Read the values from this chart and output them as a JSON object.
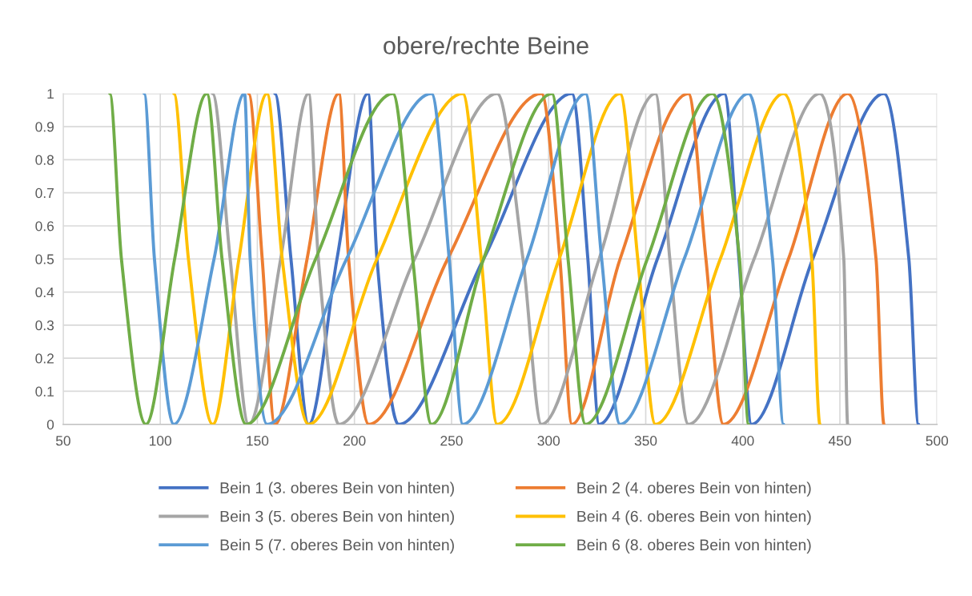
{
  "chart_data": {
    "type": "line",
    "title": "obere/rechte Beine",
    "xlim": [
      50,
      500
    ],
    "xticks": [
      50,
      100,
      150,
      200,
      250,
      300,
      350,
      400,
      450,
      500
    ],
    "ylim": [
      0,
      1
    ],
    "yticks": [
      0,
      0.1,
      0.2,
      0.3,
      0.4,
      0.5,
      0.6,
      0.7,
      0.8,
      0.9,
      1
    ],
    "grid": true,
    "legend": "bottom",
    "marker": "none",
    "line_style": "solid",
    "series": [
      {
        "name": "Bein 1 (3. oberes Bein von hinten)",
        "color": "#4472c4",
        "x": [
          159,
          167.3,
          176.4,
          191,
          207,
          211.6,
          222.7,
          266.5,
          312,
          320.2,
          326,
          356,
          390.5,
          398,
          404.5,
          436,
          472.7,
          485.5,
          490.5
        ],
        "values": [
          1,
          0.5,
          0,
          0.5,
          1,
          0.5,
          0,
          0.5,
          1,
          0.5,
          0,
          0.5,
          1,
          0.5,
          0,
          0.5,
          1,
          0.5,
          0
        ]
      },
      {
        "name": "Bein 2 (4. oberes Bein von hinten)",
        "color": "#ed7d31",
        "x": [
          145.5,
          152.5,
          159,
          175.6,
          192,
          197,
          207.4,
          248,
          296.3,
          305.8,
          312,
          336.8,
          372,
          381,
          390,
          423.5,
          454,
          468.6,
          472.7
        ],
        "values": [
          1,
          0.5,
          0,
          0.5,
          1,
          0.5,
          0,
          0.5,
          1,
          0.5,
          0,
          0.5,
          1,
          0.5,
          0,
          0.5,
          1,
          0.5,
          0
        ]
      },
      {
        "name": "Bein 3 (5. oberes Bein von hinten)",
        "color": "#a5a5a5",
        "x": [
          126.9,
          136,
          145.5,
          162,
          176.4,
          181.4,
          192,
          231,
          273.5,
          286.8,
          296.3,
          326,
          355,
          362.4,
          372,
          405.8,
          439.7,
          452,
          454
        ],
        "values": [
          1,
          0.5,
          0,
          0.5,
          1,
          0.5,
          0,
          0.5,
          1,
          0.5,
          0,
          0.5,
          1,
          0.5,
          0,
          0.5,
          1,
          0.5,
          0
        ]
      },
      {
        "name": "Bein 4 (6. oberes Bein von hinten)",
        "color": "#ffc000",
        "x": [
          107,
          114.5,
          127,
          140.5,
          155,
          162.8,
          176.4,
          211.6,
          255.8,
          265.3,
          273.5,
          305.4,
          336.8,
          345.9,
          355,
          388.4,
          421,
          435.5,
          439.7
        ],
        "values": [
          1,
          0.5,
          0,
          0.5,
          1,
          0.5,
          0,
          0.5,
          1,
          0.5,
          0,
          0.5,
          1,
          0.5,
          0,
          0.5,
          1,
          0.5,
          0
        ]
      },
      {
        "name": "Bein 5 (7. oberes Bein von hinten)",
        "color": "#5b9bd5",
        "x": [
          91.7,
          97,
          107,
          127.7,
          143.4,
          146.3,
          155,
          195.9,
          239.7,
          248.8,
          255.8,
          288.8,
          319,
          327.3,
          336.8,
          369.8,
          403,
          415.3,
          421
        ],
        "values": [
          1,
          0.5,
          0,
          0.5,
          1,
          0.5,
          0,
          0.5,
          1,
          0.5,
          0,
          0.5,
          1,
          0.5,
          0,
          0.5,
          1,
          0.5,
          0
        ]
      },
      {
        "name": "Bein 6 (8. oberes Bein von hinten)",
        "color": "#70ad47",
        "x": [
          74,
          80,
          92.6,
          107.4,
          124,
          131.8,
          144.2,
          180,
          219.8,
          230,
          239.7,
          266.5,
          301.7,
          310,
          319,
          350.8,
          384.3,
          398.3,
          403
        ],
        "values": [
          1,
          0.5,
          0,
          0.5,
          1,
          0.5,
          0,
          0.5,
          1,
          0.5,
          0,
          0.5,
          1,
          0.5,
          0,
          0.5,
          1,
          0.5,
          0
        ]
      }
    ]
  }
}
